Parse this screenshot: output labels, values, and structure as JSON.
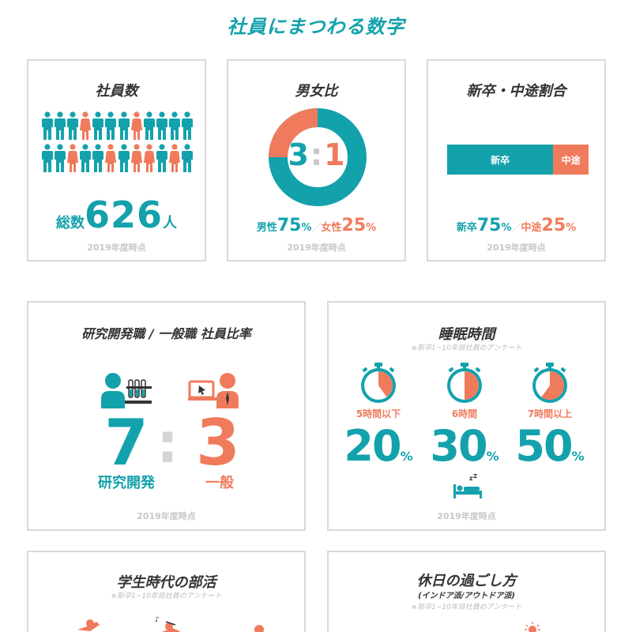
{
  "page": {
    "title": "社員にまつわる数字"
  },
  "colors": {
    "teal": "#13a2ac",
    "coral": "#f07b5c",
    "border": "#d9d9d9",
    "note": "#c7c7c7"
  },
  "employees": {
    "title": "社員数",
    "prefix": "総数",
    "count": "626",
    "suffix": "人",
    "note": "2019年度時点",
    "icon_rows": [
      [
        "male",
        "male",
        "male",
        "female",
        "male",
        "male",
        "male",
        "female",
        "male",
        "male",
        "male",
        "male"
      ],
      [
        "male",
        "male",
        "female",
        "male",
        "male",
        "female",
        "male",
        "female",
        "female",
        "male",
        "female",
        "male"
      ]
    ]
  },
  "gender": {
    "title": "男女比",
    "ratio_left": "3",
    "ratio_sep": ":",
    "ratio_right": "1",
    "male_label": "男性",
    "male_value": "75",
    "female_label": "女性",
    "female_value": "25",
    "percent": "%",
    "slash": "／",
    "note": "2019年度時点",
    "male_share": 0.75
  },
  "hire": {
    "title": "新卒・中途割合",
    "bar_new_label": "新卒",
    "bar_mid_label": "中途",
    "new_label": "新卒",
    "new_value": "75",
    "mid_label": "中途",
    "mid_value": "25",
    "percent": "%",
    "slash": "／",
    "note": "2019年度時点",
    "new_share": 0.75
  },
  "rnd": {
    "title": "研究開発職 / 一般職 社員比率",
    "left_num": "7",
    "sep": ":",
    "right_num": "3",
    "left_label": "研究開発",
    "right_label": "一般",
    "note": "2019年度時点",
    "left_icon": "researcher-icon",
    "right_icon": "office-worker-icon"
  },
  "sleep": {
    "title": "睡眠時間",
    "subtitle": "※新卒1~10年目社員のアンケート",
    "note": "2019年度時点",
    "icon": "sleeping-bed-icon",
    "items": [
      {
        "label": "5時間以下",
        "value": "20",
        "unit": "%",
        "fill": 0.4
      },
      {
        "label": "6時間",
        "value": "30",
        "unit": "%",
        "fill": 0.5
      },
      {
        "label": "7時間以上",
        "value": "50",
        "unit": "%",
        "fill": 0.6
      }
    ]
  },
  "club": {
    "title": "学生時代の部活",
    "subtitle": "※新卒1~10年目社員のアンケート"
  },
  "holiday": {
    "title": "休日の過ごし方",
    "subtitle2": "(インドア派/アウトドア派)",
    "subtitle": "※新卒1~10年目社員のアンケート"
  }
}
